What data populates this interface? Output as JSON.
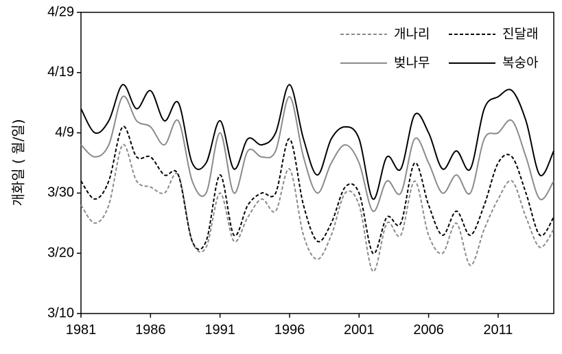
{
  "chart_data": {
    "type": "line",
    "ylabel": "개화일 ( 월/일)",
    "xlim": [
      1981,
      2015
    ],
    "ylim": [
      0,
      50
    ],
    "x_ticks": [
      {
        "value": 1981,
        "label": "1981"
      },
      {
        "value": 1986,
        "label": "1986"
      },
      {
        "value": 1991,
        "label": "1991"
      },
      {
        "value": 1996,
        "label": "1996"
      },
      {
        "value": 2001,
        "label": "2001"
      },
      {
        "value": 2006,
        "label": "2006"
      },
      {
        "value": 2011,
        "label": "2011"
      }
    ],
    "y_ticks": [
      {
        "value": 0,
        "label": "3/10"
      },
      {
        "value": 10,
        "label": "3/20"
      },
      {
        "value": 20,
        "label": "3/30"
      },
      {
        "value": 30,
        "label": "4/9"
      },
      {
        "value": 40,
        "label": "4/19"
      },
      {
        "value": 50,
        "label": "4/29"
      }
    ],
    "legend_position": "top-right",
    "x": [
      1981,
      1982,
      1983,
      1984,
      1985,
      1986,
      1987,
      1988,
      1989,
      1990,
      1991,
      1992,
      1993,
      1994,
      1995,
      1996,
      1997,
      1998,
      1999,
      2000,
      2001,
      2002,
      2003,
      2004,
      2005,
      2006,
      2007,
      2008,
      2009,
      2010,
      2011,
      2012,
      2013,
      2014,
      2015
    ],
    "series": [
      {
        "name": "개나리",
        "color": "#8a8a8a",
        "dash": "dashed",
        "values": [
          18,
          15,
          18,
          28,
          22,
          21,
          20,
          23,
          12,
          11,
          20,
          12,
          16,
          19,
          17,
          24,
          13,
          9,
          13,
          20,
          18,
          7,
          15,
          13,
          22,
          13,
          10,
          15,
          8,
          14,
          19,
          22,
          16,
          11,
          14
        ]
      },
      {
        "name": "진달래",
        "color": "#000000",
        "dash": "dashed",
        "values": [
          22,
          19,
          22,
          31,
          26,
          26,
          23,
          23,
          12,
          12,
          23,
          13,
          18,
          20,
          20,
          29,
          18,
          12,
          15,
          21,
          20,
          10,
          16,
          15,
          25,
          18,
          13,
          17,
          13,
          18,
          25,
          26,
          20,
          13,
          16
        ]
      },
      {
        "name": "벚나무",
        "color": "#8a8a8a",
        "dash": "solid",
        "values": [
          28,
          26,
          28,
          36,
          32,
          31,
          28,
          32,
          22,
          20,
          30,
          20,
          27,
          26,
          27,
          36,
          26,
          20,
          25,
          28,
          25,
          17,
          22,
          20,
          29,
          25,
          20,
          23,
          20,
          29,
          30,
          32,
          26,
          19,
          22
        ]
      },
      {
        "name": "복숭아",
        "color": "#000000",
        "dash": "solid",
        "values": [
          34,
          30,
          32,
          38,
          34,
          37,
          32,
          35,
          25,
          25,
          32,
          24,
          29,
          28,
          30,
          38,
          29,
          23,
          29,
          31,
          29,
          19,
          26,
          24,
          33,
          30,
          24,
          27,
          24,
          34,
          36,
          37,
          32,
          23,
          27
        ]
      }
    ]
  }
}
